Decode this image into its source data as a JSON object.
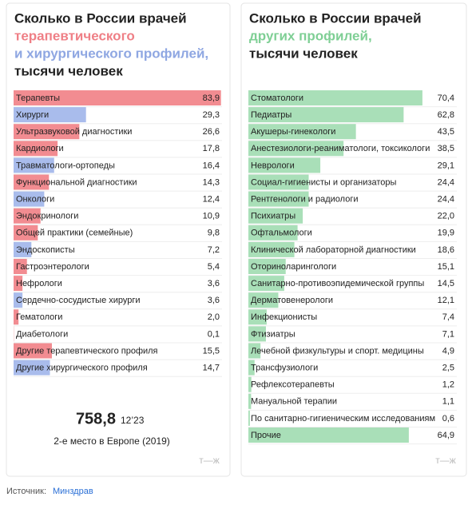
{
  "chart_data": [
    {
      "type": "bar",
      "orientation": "horizontal",
      "title_lines": [
        {
          "text": "Сколько в России врачей",
          "color": "#222222"
        },
        {
          "text": "терапевтического",
          "color": "#ef7f86"
        },
        {
          "text": "и хирургического профилей,",
          "color": "#8fa7e2"
        },
        {
          "text": "тысячи человек",
          "color": "#222222"
        }
      ],
      "categories": [
        "Терапевты",
        "Хирурги",
        "Ультразвуковой диагностики",
        "Кардиологи",
        "Травматологи-ортопеды",
        "Функциональной диагностики",
        "Онкологи",
        "Эндокринологи",
        "Общей практики (семейные)",
        "Эндоскописты",
        "Гастроэнтерологи",
        "Нефрологи",
        "Сердечно-сосудистые хирурги",
        "Гематологи",
        "Диабетологи",
        "Другие терапевтического профиля",
        "Другие хирургического профиля"
      ],
      "values": [
        83.9,
        29.3,
        26.6,
        17.8,
        16.4,
        14.3,
        12.4,
        10.9,
        9.8,
        7.2,
        5.4,
        3.6,
        3.6,
        2.0,
        0.1,
        15.5,
        14.7
      ],
      "value_labels": [
        "83,9",
        "29,3",
        "26,6",
        "17,8",
        "16,4",
        "14,3",
        "12,4",
        "10,9",
        "9,8",
        "7,2",
        "5,4",
        "3,6",
        "3,6",
        "2,0",
        "0,1",
        "15,5",
        "14,7"
      ],
      "colors": [
        "#f28c91",
        "#a9bcec",
        "#f28c91",
        "#f28c91",
        "#a9bcec",
        "#f28c91",
        "#a9bcec",
        "#f28c91",
        "#f28c91",
        "#a9bcec",
        "#f28c91",
        "#f28c91",
        "#a9bcec",
        "#f28c91",
        "#f28c91",
        "#f28c91",
        "#a9bcec"
      ],
      "xlim": [
        0,
        84
      ]
    },
    {
      "type": "bar",
      "orientation": "horizontal",
      "title_lines": [
        {
          "text": "Сколько в России врачей",
          "color": "#222222"
        },
        {
          "text": "других профилей,",
          "color": "#7fcf95"
        },
        {
          "text": "тысячи человек",
          "color": "#222222"
        }
      ],
      "categories": [
        "Стоматологи",
        "Педиатры",
        "Акушеры-гинекологи",
        "Анестезиологи-реаниматологи, токсикологи",
        "Неврологи",
        "Социал-гигиенисты и организаторы",
        "Рентгенологи и радиологи",
        "Психиатры",
        "Офтальмологи",
        "Клинической лабораторной диагностики",
        "Оториноларингологи",
        "Санитарно-противоэпидемической группы",
        "Дерматовенерологи",
        "Инфекционисты",
        "Фтизиатры",
        "Лечебной физкультуры и спорт. медицины",
        "Трансфузиологи",
        "Рефлексотерапевты",
        "Мануальной терапии",
        "По санитарно-гигиеническим исследованиям",
        "Прочие"
      ],
      "values": [
        70.4,
        62.8,
        43.5,
        38.5,
        29.1,
        24.4,
        24.4,
        22.0,
        19.9,
        18.6,
        15.1,
        14.5,
        12.1,
        7.4,
        7.1,
        4.9,
        2.5,
        1.2,
        1.1,
        0.6,
        64.9
      ],
      "value_labels": [
        "70,4",
        "62,8",
        "43,5",
        "38,5",
        "29,1",
        "24,4",
        "24,4",
        "22,0",
        "19,9",
        "18,6",
        "15,1",
        "14,5",
        "12,1",
        "7,4",
        "7,1",
        "4,9",
        "2,5",
        "1,2",
        "1,1",
        "0,6",
        "64,9"
      ],
      "color": "#a9dfb8",
      "xlim": [
        0,
        84
      ]
    }
  ],
  "total": {
    "value": "758,8",
    "date": "12’23",
    "note": "2-е место в Европе (2019)"
  },
  "logo": "т—ж",
  "source": {
    "label": "Источник:",
    "link": "Минздрав"
  }
}
